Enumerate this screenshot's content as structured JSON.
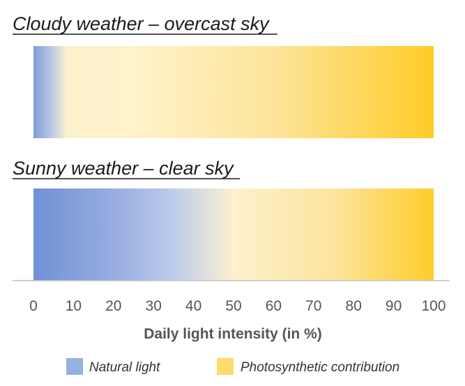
{
  "chart_data": {
    "type": "bar",
    "orientation": "horizontal",
    "xlabel": "Daily light intensity (in %)",
    "xlim": [
      0,
      100
    ],
    "xticks": [
      0,
      10,
      20,
      30,
      40,
      50,
      60,
      70,
      80,
      90,
      100
    ],
    "tick_labels": [
      "0",
      "10",
      "20",
      "30",
      "40",
      "50",
      "60",
      "70",
      "80",
      "90",
      "100"
    ],
    "grid": false,
    "legend_position": "bottom",
    "panels": [
      {
        "title": "Cloudy weather – overcast sky",
        "range": [
          0,
          100
        ],
        "natural_light_until": 9,
        "stops": [
          {
            "x": 0,
            "color": "#7f9cd8"
          },
          {
            "x": 4,
            "color": "#b2c4e6"
          },
          {
            "x": 8.5,
            "color": "#fdf1cc"
          },
          {
            "x": 25,
            "color": "#fef3cb"
          },
          {
            "x": 60,
            "color": "#fde49a"
          },
          {
            "x": 100,
            "color": "#fecc27"
          }
        ]
      },
      {
        "title": "Sunny weather – clear sky",
        "range": [
          0,
          100
        ],
        "natural_light_until": 45,
        "stops": [
          {
            "x": 0,
            "color": "#6f91d5"
          },
          {
            "x": 20,
            "color": "#97ade0"
          },
          {
            "x": 35,
            "color": "#bdcceb"
          },
          {
            "x": 45,
            "color": "#e6e4db"
          },
          {
            "x": 50,
            "color": "#fdf1cc"
          },
          {
            "x": 75,
            "color": "#fde59f"
          },
          {
            "x": 100,
            "color": "#fecd2a"
          }
        ]
      }
    ],
    "legend": [
      {
        "label": "Natural light",
        "color": "#95b1e0"
      },
      {
        "label": "Photosynthetic contribution",
        "color": "#fddb6d"
      }
    ]
  }
}
